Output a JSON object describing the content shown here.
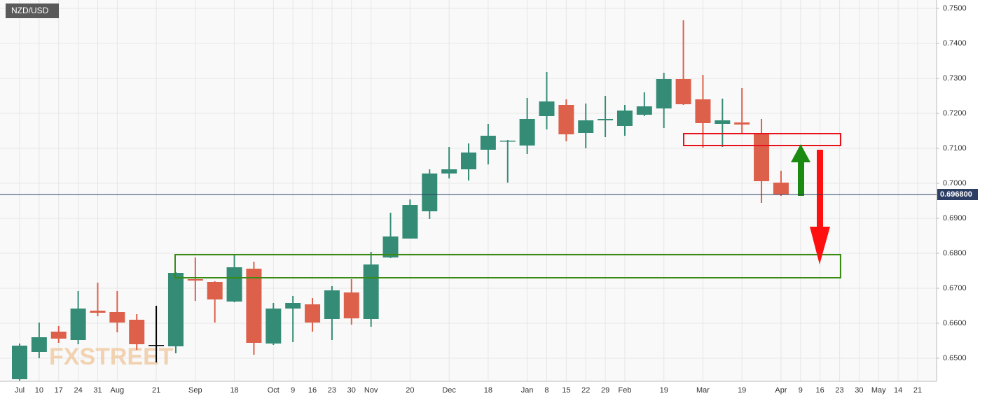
{
  "chart_data": {
    "type": "candlestick",
    "title": "NZD/USD",
    "watermark": "FXSTREET",
    "categories": [
      "Jul",
      "10",
      "17",
      "24",
      "31",
      "Aug",
      null,
      "21",
      null,
      "Sep",
      null,
      "18",
      null,
      "Oct",
      "9",
      "16",
      "23",
      "30",
      "Nov",
      null,
      "20",
      null,
      "Dec",
      null,
      "18",
      null,
      "Jan",
      "8",
      "15",
      "22",
      "29",
      "Feb",
      null,
      "19",
      null,
      "Mar",
      null,
      "19",
      null,
      "Apr",
      "9",
      "16",
      "23",
      "30",
      "May",
      "14",
      "21"
    ],
    "open": [
      0.644,
      0.6518,
      0.6576,
      0.6552,
      0.6636,
      0.6632,
      0.661,
      0.6538,
      0.6534,
      0.6726,
      0.6718,
      0.6662,
      0.6756,
      0.6542,
      0.6642,
      0.6654,
      0.6612,
      0.6688,
      0.6612,
      0.6788,
      0.6842,
      0.692,
      0.7028,
      0.704,
      0.7096,
      0.712,
      0.7108,
      0.7192,
      0.7224,
      0.7144,
      0.718,
      0.7164,
      0.7196,
      0.7214,
      0.7298,
      0.724,
      0.717,
      0.7174,
      0.7142,
      0.7002,
      null,
      null,
      null,
      null,
      null,
      null,
      null
    ],
    "high": [
      0.6542,
      0.6602,
      0.6592,
      0.6692,
      0.6716,
      0.6692,
      0.6626,
      0.665,
      0.6746,
      0.6788,
      0.672,
      0.6798,
      0.6776,
      0.6658,
      0.6678,
      0.6672,
      0.6706,
      0.6726,
      0.6804,
      0.6916,
      0.6954,
      0.704,
      0.7104,
      0.7114,
      0.717,
      0.7124,
      0.7244,
      0.7318,
      0.724,
      0.7228,
      0.725,
      0.7224,
      0.726,
      0.7316,
      0.7466,
      0.731,
      0.7242,
      0.7272,
      0.7184,
      0.7036,
      null,
      null,
      null,
      null,
      null,
      null,
      null
    ],
    "low": [
      0.6436,
      0.65,
      0.6544,
      0.654,
      0.662,
      0.6574,
      0.6524,
      0.6488,
      0.6514,
      0.6664,
      0.6602,
      0.666,
      0.651,
      0.6538,
      0.6546,
      0.6576,
      0.6552,
      0.6596,
      0.659,
      0.6786,
      0.6842,
      0.6898,
      0.7014,
      0.7008,
      0.7054,
      0.7002,
      0.7084,
      0.7154,
      0.712,
      0.71,
      0.7132,
      0.7136,
      0.7192,
      0.7158,
      0.7224,
      0.7102,
      0.7104,
      0.7144,
      0.6944,
      0.6964,
      null,
      null,
      null,
      null,
      null,
      null,
      null
    ],
    "close": [
      0.6536,
      0.656,
      0.6556,
      0.6642,
      0.663,
      0.6602,
      0.654,
      0.6538,
      0.6744,
      0.6722,
      0.6668,
      0.676,
      0.6544,
      0.6642,
      0.6658,
      0.6602,
      0.6694,
      0.6614,
      0.6768,
      0.6848,
      0.6938,
      0.7028,
      0.704,
      0.7088,
      0.7136,
      0.7122,
      0.7184,
      0.7234,
      0.714,
      0.718,
      0.7184,
      0.7208,
      0.722,
      0.7298,
      0.7226,
      0.7172,
      0.718,
      0.7168,
      0.7006,
      0.6968,
      null,
      null,
      null,
      null,
      null,
      null,
      null
    ],
    "up_color": "#358c76",
    "down_color": "#dd604b",
    "flat_color": "#000000",
    "ylim": [
      0.6434,
      0.7524
    ],
    "yticks": [
      {
        "value": 0.65,
        "label": "0.6500"
      },
      {
        "value": 0.66,
        "label": "0.6600"
      },
      {
        "value": 0.67,
        "label": "0.6700"
      },
      {
        "value": 0.68,
        "label": "0.6800"
      },
      {
        "value": 0.69,
        "label": "0.6900"
      },
      {
        "value": 0.7,
        "label": "0.7000"
      },
      {
        "value": 0.71,
        "label": "0.7100"
      },
      {
        "value": 0.72,
        "label": "0.7200"
      },
      {
        "value": 0.73,
        "label": "0.7300"
      },
      {
        "value": 0.74,
        "label": "0.7400"
      },
      {
        "value": 0.75,
        "label": "0.7500"
      }
    ],
    "current_price": {
      "value": 0.6968,
      "label": "0.696800"
    },
    "current_color": "#2c3e64",
    "grid": true
  }
}
